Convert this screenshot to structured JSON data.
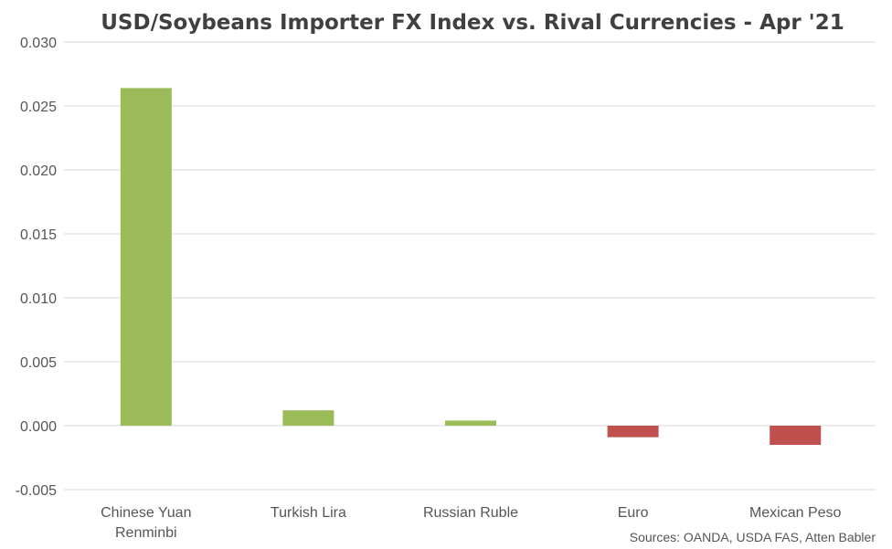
{
  "chart_data": {
    "type": "bar",
    "title": "USD/Soybeans Importer FX Index vs. Rival Currencies - Apr '21",
    "categories": [
      [
        "Chinese Yuan",
        "Renminbi"
      ],
      [
        "Turkish Lira"
      ],
      [
        "Russian Ruble"
      ],
      [
        "Euro"
      ],
      [
        "Mexican Peso"
      ]
    ],
    "values": [
      0.0264,
      0.0012,
      0.0004,
      -0.0009,
      -0.0015
    ],
    "bar_colors": [
      "#9bbb59",
      "#9bbb59",
      "#9bbb59",
      "#c0504d",
      "#c0504d"
    ],
    "ylim": [
      -0.005,
      0.03
    ],
    "yticks": [
      "0.030",
      "0.025",
      "0.020",
      "0.015",
      "0.010",
      "0.005",
      "0.000",
      "-0.005"
    ],
    "ytick_values": [
      0.03,
      0.025,
      0.02,
      0.015,
      0.01,
      0.005,
      0.0,
      -0.005
    ],
    "grid": true,
    "legend": false,
    "source": "Sources: OANDA, USDA FAS, Atten Babler"
  }
}
